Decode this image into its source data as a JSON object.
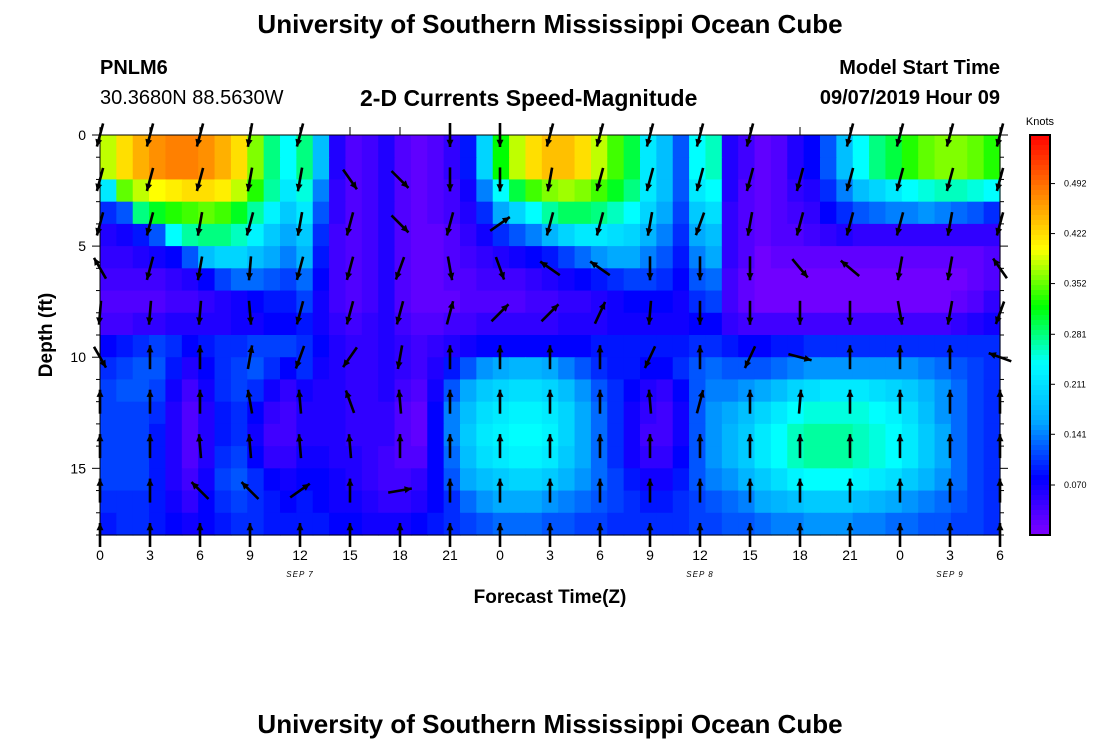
{
  "header": {
    "title_top": "University of Southern Mississippi Ocean Cube",
    "title_bottom": "University of Southern Mississippi Ocean Cube",
    "station": "PNLM6",
    "coords": "30.3680N 88.5630W",
    "plot_title": "2-D Currents Speed-Magnitude",
    "model_label": "Model Start Time",
    "model_time": "09/07/2019 Hour 09"
  },
  "chart_data": {
    "type": "heatmap",
    "title": "2-D Currents Speed-Magnitude",
    "xlabel": "Forecast Time(Z)",
    "ylabel": "Depth (ft)",
    "colorbar_label": "Knots",
    "colorbar_ticks": [
      "0.070",
      "0.141",
      "0.211",
      "0.281",
      "0.352",
      "0.422",
      "0.492"
    ],
    "colorbar_range": [
      0.0,
      0.56
    ],
    "colormap": [
      "#8000ff",
      "#0000ff",
      "#00aaff",
      "#00ffff",
      "#00ff00",
      "#ffff00",
      "#ff8000",
      "#ff0000"
    ],
    "x_tick_labels": [
      "0",
      "3",
      "6",
      "9",
      "12",
      "15",
      "18",
      "21",
      "0",
      "3",
      "6",
      "9",
      "12",
      "15",
      "18",
      "21",
      "0",
      "3",
      "6"
    ],
    "date_labels": [
      {
        "text": "SEP 7",
        "at_tick": 4
      },
      {
        "text": "SEP 8",
        "at_tick": 12
      },
      {
        "text": "SEP 9",
        "at_tick": 17
      }
    ],
    "y_ticks": [
      0,
      5,
      10,
      15
    ],
    "ylim": [
      0,
      18
    ],
    "x_hours": [
      0,
      1,
      2,
      3,
      4,
      5,
      6,
      7,
      8,
      9,
      10,
      11,
      12,
      13,
      14,
      15,
      16,
      17,
      18,
      19,
      20,
      21,
      22,
      23,
      24,
      25,
      26,
      27,
      28,
      29,
      30,
      31,
      32,
      33,
      34,
      35,
      36,
      37,
      38,
      39,
      40,
      41,
      42,
      43,
      44,
      45,
      46,
      47,
      48,
      49,
      50,
      51,
      52,
      53,
      54
    ],
    "depths_ft": [
      0.5,
      1.5,
      2.5,
      3.5,
      4.5,
      5.5,
      6.5,
      7.5,
      8.5,
      9.5,
      10.5,
      11.5,
      12.5,
      13.5,
      14.5,
      15.5,
      16.5,
      17.5
    ],
    "speed_knots": [
      [
        0.38,
        0.42,
        0.45,
        0.47,
        0.48,
        0.48,
        0.47,
        0.45,
        0.42,
        0.36,
        0.28,
        0.24,
        0.28,
        0.18,
        0.06,
        0.03,
        0.04,
        0.06,
        0.03,
        0.02,
        0.03,
        0.05,
        0.09,
        0.2,
        0.32,
        0.38,
        0.42,
        0.44,
        0.44,
        0.42,
        0.38,
        0.34,
        0.3,
        0.22,
        0.18,
        0.12,
        0.24,
        0.26,
        0.06,
        0.04,
        0.02,
        0.03,
        0.06,
        0.08,
        0.12,
        0.18,
        0.24,
        0.28,
        0.3,
        0.33,
        0.35,
        0.36,
        0.36,
        0.35,
        0.33
      ],
      [
        0.38,
        0.42,
        0.45,
        0.47,
        0.48,
        0.48,
        0.47,
        0.45,
        0.42,
        0.36,
        0.28,
        0.24,
        0.28,
        0.18,
        0.06,
        0.03,
        0.04,
        0.06,
        0.03,
        0.02,
        0.03,
        0.05,
        0.09,
        0.2,
        0.32,
        0.38,
        0.42,
        0.44,
        0.44,
        0.42,
        0.38,
        0.34,
        0.3,
        0.22,
        0.18,
        0.12,
        0.24,
        0.26,
        0.06,
        0.04,
        0.02,
        0.03,
        0.06,
        0.08,
        0.12,
        0.18,
        0.24,
        0.28,
        0.3,
        0.33,
        0.35,
        0.36,
        0.36,
        0.35,
        0.33
      ],
      [
        0.22,
        0.35,
        0.38,
        0.4,
        0.41,
        0.42,
        0.42,
        0.41,
        0.38,
        0.33,
        0.27,
        0.22,
        0.25,
        0.14,
        0.05,
        0.03,
        0.04,
        0.06,
        0.03,
        0.02,
        0.03,
        0.04,
        0.07,
        0.14,
        0.24,
        0.3,
        0.34,
        0.36,
        0.37,
        0.36,
        0.34,
        0.31,
        0.28,
        0.22,
        0.18,
        0.12,
        0.22,
        0.24,
        0.06,
        0.03,
        0.02,
        0.03,
        0.05,
        0.06,
        0.1,
        0.14,
        0.18,
        0.2,
        0.22,
        0.24,
        0.25,
        0.26,
        0.26,
        0.25,
        0.24
      ],
      [
        0.1,
        0.12,
        0.28,
        0.31,
        0.33,
        0.34,
        0.35,
        0.34,
        0.31,
        0.27,
        0.23,
        0.19,
        0.22,
        0.12,
        0.05,
        0.03,
        0.04,
        0.06,
        0.03,
        0.02,
        0.03,
        0.04,
        0.06,
        0.1,
        0.16,
        0.2,
        0.24,
        0.27,
        0.29,
        0.29,
        0.28,
        0.26,
        0.24,
        0.2,
        0.16,
        0.11,
        0.19,
        0.21,
        0.05,
        0.03,
        0.02,
        0.03,
        0.04,
        0.05,
        0.08,
        0.1,
        0.12,
        0.13,
        0.14,
        0.14,
        0.15,
        0.14,
        0.13,
        0.12,
        0.1
      ],
      [
        0.06,
        0.07,
        0.09,
        0.12,
        0.24,
        0.27,
        0.28,
        0.28,
        0.26,
        0.23,
        0.19,
        0.16,
        0.19,
        0.1,
        0.04,
        0.03,
        0.04,
        0.06,
        0.03,
        0.02,
        0.02,
        0.03,
        0.05,
        0.07,
        0.1,
        0.12,
        0.14,
        0.17,
        0.2,
        0.22,
        0.22,
        0.21,
        0.2,
        0.17,
        0.14,
        0.1,
        0.16,
        0.18,
        0.05,
        0.03,
        0.02,
        0.03,
        0.03,
        0.04,
        0.05,
        0.06,
        0.05,
        0.05,
        0.05,
        0.05,
        0.05,
        0.05,
        0.05,
        0.05,
        0.05
      ],
      [
        0.05,
        0.05,
        0.06,
        0.07,
        0.08,
        0.12,
        0.18,
        0.2,
        0.2,
        0.18,
        0.16,
        0.14,
        0.17,
        0.09,
        0.04,
        0.03,
        0.04,
        0.06,
        0.03,
        0.02,
        0.02,
        0.03,
        0.04,
        0.05,
        0.06,
        0.07,
        0.08,
        0.09,
        0.11,
        0.13,
        0.15,
        0.16,
        0.16,
        0.14,
        0.12,
        0.09,
        0.14,
        0.16,
        0.05,
        0.03,
        0.01,
        0.02,
        0.02,
        0.02,
        0.02,
        0.02,
        0.02,
        0.02,
        0.02,
        0.02,
        0.02,
        0.02,
        0.02,
        0.02,
        0.03
      ],
      [
        0.04,
        0.04,
        0.04,
        0.04,
        0.05,
        0.06,
        0.08,
        0.11,
        0.13,
        0.13,
        0.12,
        0.11,
        0.13,
        0.08,
        0.04,
        0.03,
        0.04,
        0.06,
        0.03,
        0.02,
        0.02,
        0.03,
        0.03,
        0.04,
        0.04,
        0.04,
        0.05,
        0.06,
        0.07,
        0.08,
        0.09,
        0.1,
        0.11,
        0.11,
        0.1,
        0.08,
        0.12,
        0.13,
        0.04,
        0.02,
        0.01,
        0.01,
        0.01,
        0.01,
        0.01,
        0.01,
        0.01,
        0.01,
        0.01,
        0.01,
        0.01,
        0.01,
        0.01,
        0.02,
        0.03
      ],
      [
        0.03,
        0.03,
        0.03,
        0.03,
        0.04,
        0.04,
        0.05,
        0.06,
        0.07,
        0.08,
        0.09,
        0.09,
        0.11,
        0.07,
        0.04,
        0.03,
        0.04,
        0.06,
        0.03,
        0.02,
        0.02,
        0.02,
        0.03,
        0.03,
        0.03,
        0.03,
        0.04,
        0.04,
        0.05,
        0.05,
        0.06,
        0.07,
        0.08,
        0.08,
        0.08,
        0.07,
        0.1,
        0.11,
        0.04,
        0.02,
        0.01,
        0.01,
        0.01,
        0.01,
        0.01,
        0.01,
        0.01,
        0.01,
        0.01,
        0.01,
        0.01,
        0.01,
        0.02,
        0.03,
        0.05
      ],
      [
        0.04,
        0.04,
        0.05,
        0.05,
        0.06,
        0.06,
        0.06,
        0.06,
        0.07,
        0.07,
        0.08,
        0.08,
        0.09,
        0.07,
        0.05,
        0.04,
        0.05,
        0.06,
        0.04,
        0.03,
        0.03,
        0.04,
        0.04,
        0.05,
        0.05,
        0.05,
        0.05,
        0.05,
        0.06,
        0.06,
        0.06,
        0.07,
        0.07,
        0.07,
        0.07,
        0.07,
        0.08,
        0.08,
        0.05,
        0.04,
        0.04,
        0.04,
        0.04,
        0.04,
        0.04,
        0.04,
        0.04,
        0.04,
        0.04,
        0.04,
        0.04,
        0.04,
        0.05,
        0.06,
        0.07
      ],
      [
        0.08,
        0.09,
        0.1,
        0.11,
        0.1,
        0.08,
        0.09,
        0.1,
        0.1,
        0.11,
        0.11,
        0.11,
        0.1,
        0.08,
        0.06,
        0.05,
        0.05,
        0.06,
        0.05,
        0.04,
        0.05,
        0.06,
        0.07,
        0.08,
        0.08,
        0.08,
        0.08,
        0.08,
        0.08,
        0.08,
        0.09,
        0.09,
        0.09,
        0.09,
        0.09,
        0.09,
        0.1,
        0.1,
        0.09,
        0.08,
        0.08,
        0.09,
        0.09,
        0.1,
        0.1,
        0.1,
        0.1,
        0.1,
        0.1,
        0.1,
        0.1,
        0.1,
        0.1,
        0.1,
        0.1
      ],
      [
        0.1,
        0.11,
        0.12,
        0.12,
        0.09,
        0.06,
        0.08,
        0.1,
        0.11,
        0.12,
        0.1,
        0.08,
        0.1,
        0.07,
        0.06,
        0.05,
        0.05,
        0.06,
        0.05,
        0.04,
        0.06,
        0.09,
        0.12,
        0.15,
        0.16,
        0.17,
        0.17,
        0.16,
        0.14,
        0.12,
        0.1,
        0.09,
        0.09,
        0.08,
        0.08,
        0.1,
        0.12,
        0.13,
        0.12,
        0.12,
        0.12,
        0.13,
        0.14,
        0.15,
        0.15,
        0.15,
        0.15,
        0.15,
        0.15,
        0.15,
        0.14,
        0.13,
        0.12,
        0.11,
        0.1
      ],
      [
        0.11,
        0.12,
        0.12,
        0.11,
        0.07,
        0.04,
        0.07,
        0.1,
        0.11,
        0.1,
        0.07,
        0.05,
        0.07,
        0.06,
        0.06,
        0.05,
        0.05,
        0.06,
        0.04,
        0.03,
        0.07,
        0.12,
        0.16,
        0.19,
        0.2,
        0.21,
        0.21,
        0.2,
        0.18,
        0.15,
        0.12,
        0.1,
        0.08,
        0.06,
        0.05,
        0.08,
        0.12,
        0.14,
        0.14,
        0.15,
        0.16,
        0.18,
        0.2,
        0.21,
        0.22,
        0.22,
        0.22,
        0.21,
        0.2,
        0.19,
        0.17,
        0.15,
        0.13,
        0.11,
        0.1
      ],
      [
        0.11,
        0.11,
        0.11,
        0.1,
        0.06,
        0.03,
        0.06,
        0.09,
        0.1,
        0.08,
        0.05,
        0.04,
        0.06,
        0.06,
        0.06,
        0.05,
        0.05,
        0.05,
        0.03,
        0.02,
        0.08,
        0.14,
        0.18,
        0.21,
        0.22,
        0.23,
        0.23,
        0.22,
        0.2,
        0.16,
        0.13,
        0.1,
        0.07,
        0.05,
        0.04,
        0.07,
        0.12,
        0.15,
        0.16,
        0.18,
        0.2,
        0.22,
        0.24,
        0.25,
        0.25,
        0.25,
        0.25,
        0.24,
        0.23,
        0.21,
        0.18,
        0.15,
        0.13,
        0.11,
        0.1
      ],
      [
        0.11,
        0.11,
        0.11,
        0.09,
        0.06,
        0.03,
        0.06,
        0.09,
        0.1,
        0.07,
        0.04,
        0.04,
        0.06,
        0.06,
        0.06,
        0.05,
        0.05,
        0.05,
        0.03,
        0.02,
        0.08,
        0.14,
        0.19,
        0.22,
        0.23,
        0.24,
        0.24,
        0.23,
        0.2,
        0.16,
        0.13,
        0.1,
        0.07,
        0.04,
        0.04,
        0.07,
        0.12,
        0.15,
        0.17,
        0.19,
        0.22,
        0.24,
        0.26,
        0.27,
        0.27,
        0.27,
        0.26,
        0.25,
        0.24,
        0.22,
        0.19,
        0.16,
        0.13,
        0.11,
        0.1
      ],
      [
        0.11,
        0.11,
        0.11,
        0.09,
        0.06,
        0.03,
        0.06,
        0.1,
        0.11,
        0.08,
        0.05,
        0.05,
        0.07,
        0.07,
        0.06,
        0.06,
        0.05,
        0.04,
        0.03,
        0.03,
        0.08,
        0.13,
        0.18,
        0.21,
        0.22,
        0.23,
        0.23,
        0.22,
        0.19,
        0.16,
        0.13,
        0.1,
        0.07,
        0.05,
        0.05,
        0.08,
        0.12,
        0.15,
        0.17,
        0.19,
        0.22,
        0.24,
        0.26,
        0.27,
        0.27,
        0.27,
        0.26,
        0.25,
        0.24,
        0.22,
        0.19,
        0.16,
        0.13,
        0.11,
        0.1
      ],
      [
        0.11,
        0.11,
        0.11,
        0.09,
        0.06,
        0.04,
        0.07,
        0.11,
        0.12,
        0.1,
        0.08,
        0.07,
        0.08,
        0.08,
        0.07,
        0.06,
        0.05,
        0.04,
        0.04,
        0.05,
        0.08,
        0.12,
        0.16,
        0.18,
        0.19,
        0.2,
        0.2,
        0.19,
        0.17,
        0.15,
        0.13,
        0.11,
        0.09,
        0.07,
        0.07,
        0.09,
        0.12,
        0.14,
        0.15,
        0.17,
        0.19,
        0.21,
        0.23,
        0.24,
        0.24,
        0.24,
        0.23,
        0.22,
        0.21,
        0.19,
        0.17,
        0.15,
        0.13,
        0.11,
        0.1
      ],
      [
        0.1,
        0.1,
        0.1,
        0.09,
        0.07,
        0.05,
        0.08,
        0.1,
        0.11,
        0.1,
        0.09,
        0.08,
        0.09,
        0.08,
        0.07,
        0.07,
        0.06,
        0.05,
        0.05,
        0.06,
        0.08,
        0.1,
        0.13,
        0.15,
        0.16,
        0.16,
        0.16,
        0.15,
        0.14,
        0.13,
        0.12,
        0.11,
        0.1,
        0.09,
        0.09,
        0.1,
        0.11,
        0.12,
        0.13,
        0.14,
        0.16,
        0.17,
        0.18,
        0.19,
        0.19,
        0.19,
        0.18,
        0.17,
        0.16,
        0.15,
        0.14,
        0.13,
        0.12,
        0.11,
        0.1
      ],
      [
        0.09,
        0.1,
        0.1,
        0.09,
        0.08,
        0.07,
        0.08,
        0.09,
        0.1,
        0.1,
        0.09,
        0.09,
        0.09,
        0.09,
        0.08,
        0.08,
        0.07,
        0.07,
        0.07,
        0.08,
        0.09,
        0.1,
        0.11,
        0.12,
        0.13,
        0.13,
        0.13,
        0.12,
        0.12,
        0.11,
        0.11,
        0.1,
        0.1,
        0.1,
        0.1,
        0.1,
        0.11,
        0.11,
        0.12,
        0.12,
        0.13,
        0.14,
        0.14,
        0.15,
        0.15,
        0.15,
        0.14,
        0.14,
        0.13,
        0.13,
        0.12,
        0.12,
        0.11,
        0.11,
        0.1
      ]
    ],
    "vector_x_hours": [
      0,
      3,
      6,
      9,
      12,
      15,
      18,
      21,
      24,
      27,
      30,
      33,
      36,
      39,
      42,
      45,
      48,
      51,
      54
    ],
    "vector_depths_ft": [
      0,
      2,
      4,
      6,
      8,
      10,
      12,
      14,
      16,
      18
    ],
    "vector_angles_deg": [
      [
        255,
        255,
        255,
        260,
        255,
        null,
        null,
        270,
        270,
        255,
        255,
        255,
        255,
        255,
        null,
        255,
        255,
        255,
        255
      ],
      [
        255,
        255,
        255,
        260,
        260,
        305,
        315,
        270,
        270,
        260,
        255,
        255,
        255,
        255,
        255,
        255,
        255,
        255,
        255
      ],
      [
        255,
        255,
        260,
        255,
        260,
        255,
        315,
        255,
        35,
        255,
        255,
        260,
        250,
        260,
        255,
        255,
        255,
        260,
        255
      ],
      [
        120,
        255,
        260,
        265,
        255,
        255,
        250,
        280,
        290,
        145,
        145,
        270,
        270,
        270,
        310,
        140,
        260,
        260,
        125
      ],
      [
        265,
        265,
        265,
        275,
        255,
        255,
        255,
        75,
        45,
        45,
        65,
        265,
        270,
        270,
        270,
        270,
        280,
        260,
        250
      ],
      [
        300,
        90,
        90,
        80,
        250,
        235,
        260,
        90,
        90,
        90,
        90,
        245,
        90,
        245,
        345,
        90,
        90,
        90,
        160
      ],
      [
        90,
        90,
        90,
        100,
        95,
        110,
        95,
        90,
        90,
        90,
        90,
        95,
        75,
        90,
        85,
        90,
        90,
        90,
        90
      ],
      [
        90,
        90,
        95,
        95,
        95,
        95,
        90,
        90,
        90,
        90,
        90,
        90,
        90,
        90,
        90,
        90,
        90,
        90,
        90
      ],
      [
        90,
        90,
        135,
        135,
        35,
        90,
        10,
        90,
        90,
        90,
        90,
        90,
        90,
        90,
        90,
        90,
        90,
        90,
        90
      ],
      [
        90,
        90,
        90,
        90,
        90,
        90,
        90,
        90,
        90,
        90,
        90,
        90,
        90,
        90,
        90,
        90,
        90,
        90,
        90
      ]
    ]
  }
}
